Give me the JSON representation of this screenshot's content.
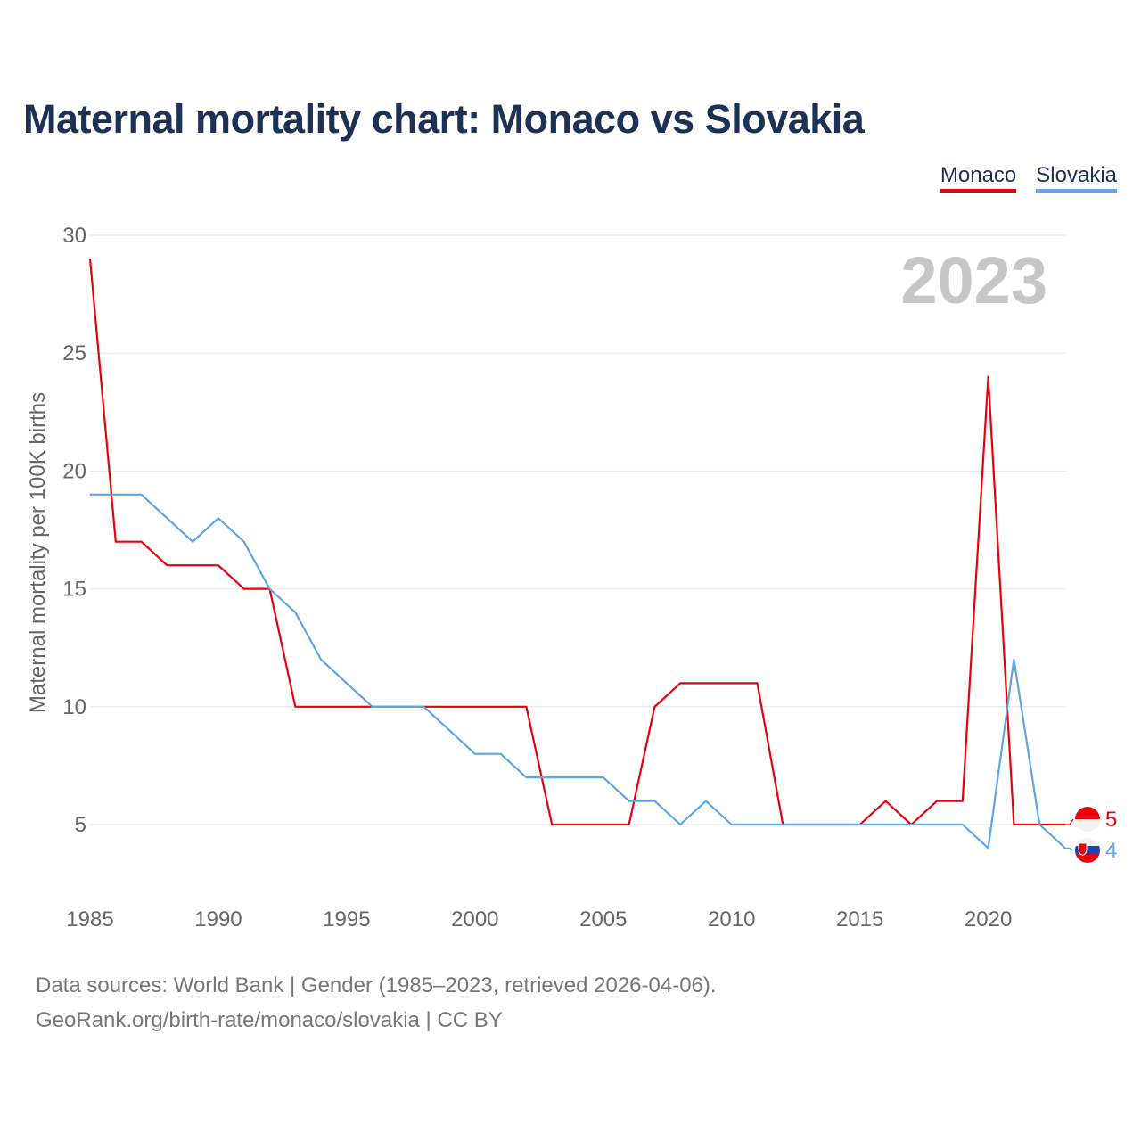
{
  "title": "Maternal mortality chart: Monaco vs Slovakia",
  "legend": {
    "monaco": "Monaco",
    "slovakia": "Slovakia"
  },
  "current_year_label": "2023",
  "footer": {
    "sources": "Data sources: World Bank | Gender (1985–2023, retrieved 2026-04-06).",
    "credit": "GeoRank.org/birth-rate/monaco/slovakia | CC BY"
  },
  "colors": {
    "monaco": "#e8000b",
    "slovakia": "#5ea6e4",
    "title": "#1c3153",
    "grid": "#e6e6e6",
    "axis_text": "#666666"
  },
  "chart_data": {
    "type": "line",
    "title": "Maternal mortality chart: Monaco vs Slovakia",
    "xlabel": "",
    "ylabel": "Maternal mortality per 100K births",
    "xlim": [
      1985,
      2023
    ],
    "ylim": [
      2.5,
      30
    ],
    "yticks": [
      5,
      10,
      15,
      20,
      25,
      30
    ],
    "xticks": [
      1985,
      1990,
      1995,
      2000,
      2005,
      2010,
      2015,
      2020
    ],
    "grid": true,
    "legend_position": "top-right",
    "x": [
      1985,
      1986,
      1987,
      1988,
      1989,
      1990,
      1991,
      1992,
      1993,
      1994,
      1995,
      1996,
      1997,
      1998,
      1999,
      2000,
      2001,
      2002,
      2003,
      2004,
      2005,
      2006,
      2007,
      2008,
      2009,
      2010,
      2011,
      2012,
      2013,
      2014,
      2015,
      2016,
      2017,
      2018,
      2019,
      2020,
      2021,
      2022,
      2023
    ],
    "series": [
      {
        "name": "Monaco",
        "color": "#e8000b",
        "end_label": "5",
        "values": [
          29,
          17,
          17,
          16,
          16,
          16,
          15,
          15,
          10,
          10,
          10,
          10,
          10,
          10,
          10,
          10,
          10,
          10,
          5,
          5,
          5,
          5,
          10,
          11,
          11,
          11,
          11,
          5,
          5,
          5,
          5,
          6,
          5,
          6,
          6,
          24,
          5,
          5,
          5
        ]
      },
      {
        "name": "Slovakia",
        "color": "#5ea6e4",
        "end_label": "4",
        "values": [
          19,
          19,
          19,
          18,
          17,
          18,
          17,
          15,
          14,
          12,
          11,
          10,
          10,
          10,
          9,
          8,
          8,
          7,
          7,
          7,
          7,
          6,
          6,
          5,
          6,
          5,
          5,
          5,
          5,
          5,
          5,
          5,
          5,
          5,
          5,
          4,
          12,
          5,
          4
        ]
      }
    ]
  }
}
